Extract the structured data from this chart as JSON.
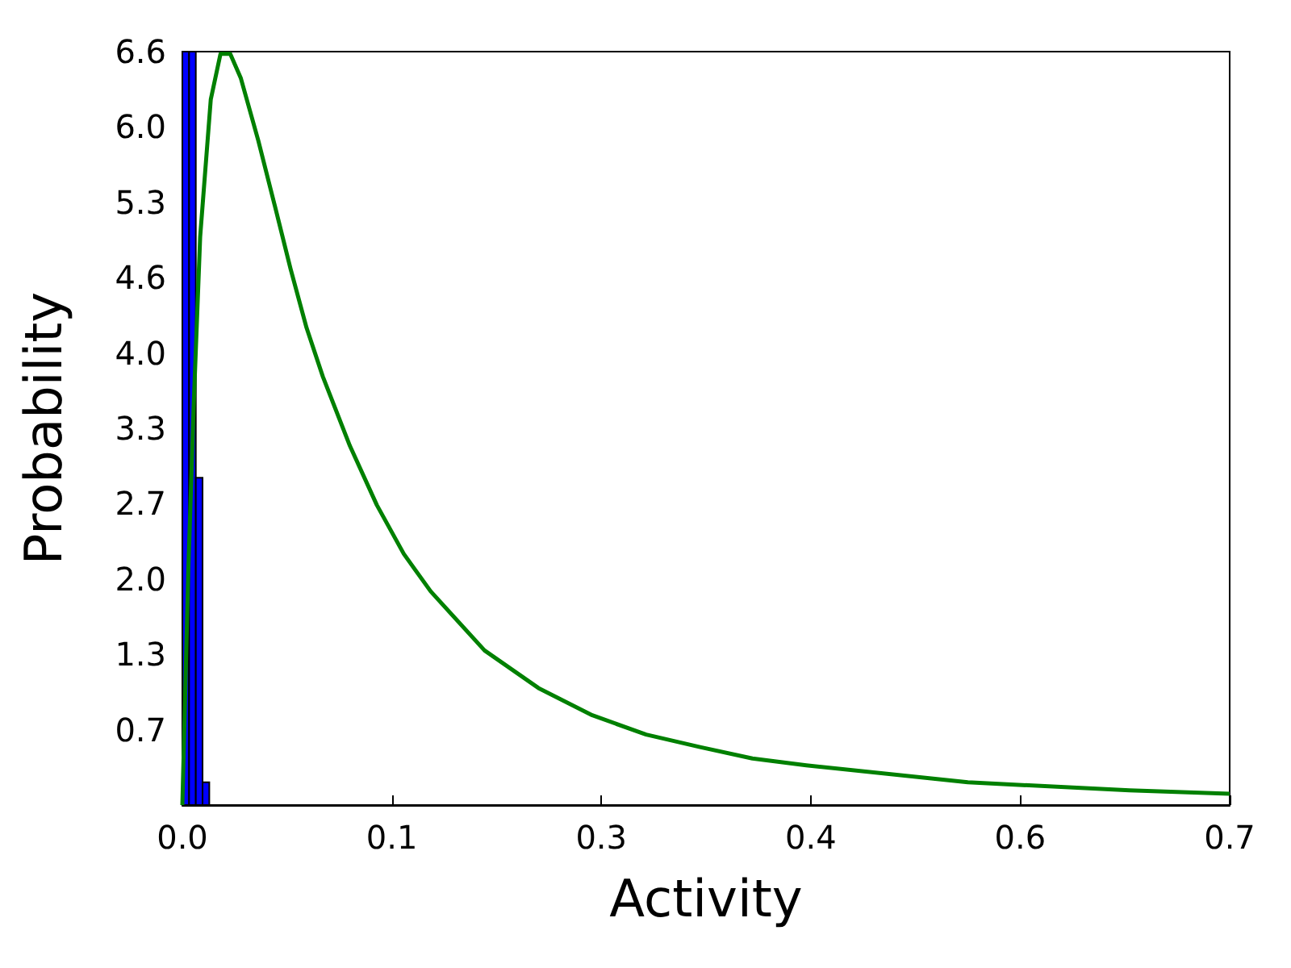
{
  "chart_data": {
    "type": "histogram",
    "xlabel": "Activity",
    "ylabel": "Probability",
    "xlim": [
      0,
      0.7
    ],
    "ylim": [
      0,
      6.63
    ],
    "xticks": [
      {
        "value": 0,
        "label": "0.0"
      },
      {
        "value": 0.14,
        "label": "0.1"
      },
      {
        "value": 0.28,
        "label": "0.3"
      },
      {
        "value": 0.42,
        "label": "0.4"
      },
      {
        "value": 0.56,
        "label": "0.6"
      },
      {
        "value": 0.7,
        "label": "0.7"
      }
    ],
    "yticks": [
      {
        "value": 0,
        "label": null
      },
      {
        "value": 0.663,
        "label": "0.7"
      },
      {
        "value": 1.326,
        "label": "1.3"
      },
      {
        "value": 1.989,
        "label": "2.0"
      },
      {
        "value": 2.652,
        "label": "2.7"
      },
      {
        "value": 3.315,
        "label": "3.3"
      },
      {
        "value": 3.978,
        "label": "4.0"
      },
      {
        "value": 4.641,
        "label": "4.6"
      },
      {
        "value": 5.304,
        "label": "5.3"
      },
      {
        "value": 5.967,
        "label": "6.0"
      },
      {
        "value": 6.63,
        "label": "6.6"
      }
    ],
    "grid": false,
    "series": [
      {
        "color": "#0000ff",
        "bins": [
          0,
          0.0045,
          0.009,
          0.0135,
          0.018
        ],
        "values": [
          6.63,
          6.63,
          2.88,
          0.2
        ]
      },
      {
        "type": "line",
        "color": "#008000",
        "marker": "none",
        "line_style": "solid",
        "x": [
          0,
          0.004,
          0.0075,
          0.0119,
          0.019,
          0.0255,
          0.032,
          0.039,
          0.0507,
          0.0615,
          0.0723,
          0.083,
          0.0939,
          0.112,
          0.13,
          0.148,
          0.166,
          0.202,
          0.238,
          0.274,
          0.31,
          0.346,
          0.381,
          0.417,
          0.525,
          0.633,
          0.7
        ],
        "values": [
          0,
          2.07,
          3.49,
          5.0,
          6.21,
          6.61,
          6.61,
          6.4,
          5.85,
          5.29,
          4.72,
          4.2,
          3.77,
          3.16,
          2.64,
          2.21,
          1.88,
          1.36,
          1.03,
          0.79,
          0.62,
          0.51,
          0.41,
          0.35,
          0.2,
          0.13,
          0.1
        ]
      }
    ]
  }
}
